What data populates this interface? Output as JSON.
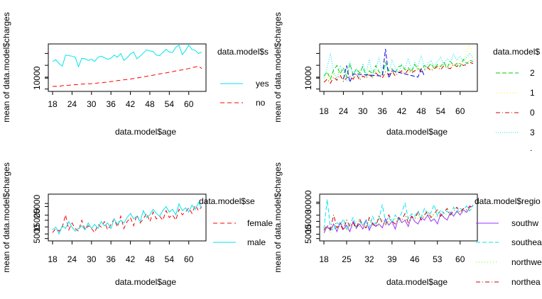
{
  "chart_data": [
    {
      "type": "line",
      "title": "",
      "xlabel": "data.model$age",
      "ylabel": "mean of  data.model$charges",
      "legend_title": "data.model$s",
      "x_ticks": [
        "18",
        "24",
        "30",
        "36",
        "42",
        "48",
        "54",
        "60"
      ],
      "y_ticks": [
        "10000"
      ],
      "xlim": [
        18,
        64
      ],
      "ylim": [
        0,
        40000
      ],
      "grid": false,
      "legend_position": "right",
      "x": [
        18,
        19,
        20,
        21,
        22,
        23,
        24,
        25,
        26,
        27,
        28,
        29,
        30,
        31,
        32,
        33,
        34,
        35,
        36,
        37,
        38,
        39,
        40,
        41,
        42,
        43,
        44,
        45,
        46,
        47,
        48,
        49,
        50,
        51,
        52,
        53,
        54,
        55,
        56,
        57,
        58,
        59,
        60,
        61,
        62,
        63,
        64
      ],
      "series": [
        {
          "name": "yes",
          "color": "#00e5ee",
          "dash": "solid",
          "values": [
            26000,
            27500,
            24000,
            21500,
            32000,
            31500,
            31000,
            30000,
            21000,
            29000,
            28500,
            27000,
            28000,
            26000,
            30000,
            31000,
            29500,
            28000,
            29000,
            32000,
            30000,
            33500,
            27000,
            29500,
            33000,
            35000,
            28500,
            31000,
            34000,
            37000,
            36000,
            35500,
            32000,
            31500,
            34500,
            37500,
            35000,
            34500,
            39500,
            41500,
            32500,
            36500,
            41500,
            37500,
            36500,
            33500,
            35000
          ]
        },
        {
          "name": "no",
          "color": "#ff0000",
          "dash": "6,4",
          "values": [
            2000,
            2200,
            2100,
            2800,
            3000,
            3100,
            3500,
            3700,
            3800,
            4300,
            4500,
            4600,
            4700,
            4800,
            5400,
            5500,
            5900,
            6000,
            6800,
            7000,
            7600,
            7900,
            8400,
            8700,
            9100,
            9600,
            10200,
            10600,
            11200,
            11800,
            12300,
            12800,
            13300,
            14000,
            14500,
            15000,
            15600,
            16200,
            16900,
            17400,
            17900,
            18600,
            19200,
            20000,
            20700,
            21400,
            19200
          ]
        }
      ]
    },
    {
      "type": "line",
      "title": "",
      "xlabel": "data.model$age",
      "ylabel": "mean of  data.model$charges",
      "legend_title": "data.model$",
      "x_ticks": [
        "18",
        "24",
        "30",
        "36",
        "42",
        "48",
        "54",
        "60"
      ],
      "y_ticks": [
        "10000"
      ],
      "xlim": [
        18,
        64
      ],
      "ylim": [
        0,
        40000
      ],
      "grid": false,
      "legend_position": "right",
      "x": [
        18,
        19,
        20,
        21,
        22,
        23,
        24,
        25,
        26,
        27,
        28,
        29,
        30,
        31,
        32,
        33,
        34,
        35,
        36,
        37,
        38,
        39,
        40,
        41,
        42,
        43,
        44,
        45,
        46,
        47,
        48,
        49,
        50,
        51,
        52,
        53,
        54,
        55,
        56,
        57,
        58,
        59,
        60,
        61,
        62,
        63,
        64
      ],
      "series": [
        {
          "name": "2",
          "color": "#00cd00",
          "dash": "6,3",
          "values": [
            12000,
            16000,
            9000,
            18000,
            22000,
            14000,
            20000,
            11000,
            24000,
            13000,
            19000,
            15000,
            21000,
            12000,
            17000,
            14000,
            22000,
            16000,
            13000,
            25000,
            17000,
            19000,
            15000,
            21000,
            22000,
            18000,
            20000,
            16000,
            23000,
            19000,
            18000,
            22000,
            20000,
            24000,
            19000,
            23000,
            21000,
            25000,
            20000,
            26000,
            22000,
            24000,
            21000,
            28000,
            24000,
            27000,
            26000
          ]
        },
        {
          "name": "1",
          "color": "#ffee00",
          "dash": "1,3",
          "values": [
            8000,
            13000,
            6000,
            15000,
            10000,
            18000,
            7000,
            14000,
            12000,
            16000,
            9000,
            17000,
            11000,
            13000,
            15000,
            10000,
            18000,
            12000,
            16000,
            11000,
            19000,
            14000,
            13000,
            17000,
            15000,
            20000,
            14000,
            18000,
            16000,
            21000,
            17000,
            19000,
            20000,
            18000,
            22000,
            19000,
            23000,
            21000,
            20000,
            24000,
            22000,
            25000,
            23000,
            26000,
            35000,
            42000,
            30000
          ]
        },
        {
          "name": "0",
          "color": "#cd0000",
          "dash": "6,3,1,3",
          "values": [
            6000,
            9000,
            5000,
            11000,
            8000,
            13000,
            7000,
            10000,
            12000,
            9000,
            14000,
            8000,
            12000,
            10000,
            13000,
            11000,
            15000,
            12000,
            10000,
            16000,
            13000,
            17000,
            12000,
            15000,
            17000,
            14000,
            18000,
            15000,
            17000,
            19000,
            16000,
            18000,
            20000,
            17000,
            19000,
            21000,
            18000,
            22000,
            20000,
            19000,
            23000,
            21000,
            24000,
            22000,
            23000,
            25000,
            24000
          ]
        },
        {
          "name": "3",
          "color": "#00e5ee",
          "dash": "1,2",
          "values": [
            10000,
            20000,
            34000,
            16000,
            9000,
            22000,
            15000,
            8000,
            26000,
            12000,
            19000,
            10000,
            24000,
            14000,
            28000,
            11000,
            18000,
            30000,
            13000,
            22000,
            16000,
            27000,
            20000,
            15000,
            23000,
            19000,
            29000,
            17000,
            25000,
            21000,
            32000,
            18000,
            24000,
            27000,
            21000,
            26000,
            30000,
            23000,
            29000,
            25000,
            33000,
            27000,
            31000,
            26000,
            30000,
            34000,
            28000
          ]
        }
      ],
      "extra_series_strokes": [
        {
          "color": "#0000ee",
          "dash": "6,3",
          "x": [
            24,
            25,
            26,
            27,
            36,
            37,
            38,
            39,
            47,
            48,
            49
          ],
          "values": [
            9000,
            22000,
            6000,
            14000,
            12000,
            38000,
            10000,
            17000,
            11000,
            19000,
            12000
          ]
        }
      ],
      "legend_overflow_mark": "."
    },
    {
      "type": "line",
      "title": "",
      "xlabel": "data.model$age",
      "ylabel": "mean of  data.model$charges",
      "legend_title": "data.model$se",
      "x_ticks": [
        "18",
        "24",
        "30",
        "36",
        "42",
        "48",
        "54",
        "60"
      ],
      "y_ticks": [
        "5000",
        "15000",
        "25000"
      ],
      "xlim": [
        18,
        64
      ],
      "ylim": [
        2000,
        32000
      ],
      "grid": false,
      "legend_position": "right",
      "x": [
        18,
        19,
        20,
        21,
        22,
        23,
        24,
        25,
        26,
        27,
        28,
        29,
        30,
        31,
        32,
        33,
        34,
        35,
        36,
        37,
        38,
        39,
        40,
        41,
        42,
        43,
        44,
        45,
        46,
        47,
        48,
        49,
        50,
        51,
        52,
        53,
        54,
        55,
        56,
        57,
        58,
        59,
        60,
        61,
        62,
        63,
        64
      ],
      "series": [
        {
          "name": "female",
          "color": "#ff0000",
          "dash": "6,4",
          "values": [
            6000,
            9000,
            7000,
            10000,
            19000,
            8000,
            13000,
            9000,
            7000,
            15000,
            8000,
            11000,
            9000,
            6000,
            12000,
            10000,
            14000,
            8000,
            12000,
            16000,
            10000,
            18000,
            9000,
            14000,
            17000,
            11000,
            19000,
            13000,
            16000,
            20000,
            14000,
            21000,
            16000,
            18000,
            15000,
            22000,
            17000,
            19000,
            15000,
            23000,
            19000,
            21000,
            24000,
            20000,
            26000,
            22000,
            25000
          ]
        },
        {
          "name": "male",
          "color": "#00e5ee",
          "dash": "solid",
          "values": [
            8000,
            10000,
            5000,
            11000,
            9000,
            14000,
            10000,
            7000,
            9000,
            11000,
            8000,
            13000,
            9000,
            12000,
            9000,
            14000,
            11000,
            13000,
            9000,
            16000,
            12000,
            15000,
            13000,
            17000,
            20000,
            16000,
            18000,
            14000,
            22000,
            17000,
            19000,
            23000,
            20000,
            18000,
            22000,
            25000,
            21000,
            23000,
            19000,
            27000,
            22000,
            24000,
            21000,
            26000,
            23000,
            28000,
            24000
          ]
        }
      ]
    },
    {
      "type": "line",
      "title": "",
      "xlabel": "data.model$age",
      "ylabel": "mean of  data.model$charges",
      "legend_title": "data.model$regio",
      "x_ticks": [
        "18",
        "25",
        "32",
        "39",
        "46",
        "53",
        "60"
      ],
      "y_ticks": [
        "5000",
        "15000",
        "30000"
      ],
      "xlim": [
        18,
        64
      ],
      "ylim": [
        2000,
        34000
      ],
      "grid": false,
      "legend_position": "right",
      "x": [
        18,
        19,
        20,
        21,
        22,
        23,
        24,
        25,
        26,
        27,
        28,
        29,
        30,
        31,
        32,
        33,
        34,
        35,
        36,
        37,
        38,
        39,
        40,
        41,
        42,
        43,
        44,
        45,
        46,
        47,
        48,
        49,
        50,
        51,
        52,
        53,
        54,
        55,
        56,
        57,
        58,
        59,
        60,
        61,
        62,
        63,
        64
      ],
      "series": [
        {
          "name": "southw",
          "color": "#9b30ff",
          "dash": "solid",
          "values": [
            6000,
            11000,
            8000,
            13000,
            7000,
            14000,
            9000,
            12000,
            7000,
            15000,
            10000,
            13000,
            9000,
            16000,
            8000,
            14000,
            11000,
            13000,
            10000,
            17000,
            12000,
            15000,
            9000,
            18000,
            14000,
            16000,
            11000,
            19000,
            15000,
            13000,
            18000,
            16000,
            20000,
            15000,
            17000,
            13000,
            21000,
            18000,
            16000,
            22000,
            19000,
            23000,
            20000,
            24000,
            22000,
            26000,
            27000
          ]
        },
        {
          "name": "southea",
          "color": "#00e5ee",
          "dash": "6,3",
          "values": [
            9000,
            32000,
            10000,
            8000,
            14000,
            12000,
            17000,
            9000,
            13000,
            18000,
            11000,
            15000,
            12000,
            16000,
            10000,
            19000,
            13000,
            17000,
            28000,
            15000,
            18000,
            14000,
            20000,
            16000,
            22000,
            29000,
            17000,
            21000,
            19000,
            23000,
            18000,
            25000,
            20000,
            22000,
            28000,
            19000,
            24000,
            21000,
            23000,
            20000,
            26000,
            22000,
            25000,
            24000,
            27000,
            23000,
            28000
          ]
        },
        {
          "name": "northwe",
          "color": "#66ff00",
          "dash": "1,3",
          "values": [
            7000,
            10000,
            6000,
            12000,
            9000,
            11000,
            14000,
            8000,
            12000,
            10000,
            15000,
            11000,
            13000,
            9000,
            16000,
            12000,
            14000,
            11000,
            17000,
            13000,
            15000,
            12000,
            18000,
            14000,
            16000,
            15000,
            19000,
            16000,
            18000,
            17000,
            20000,
            18000,
            19000,
            21000,
            17000,
            20000,
            22000,
            19000,
            21000,
            23000,
            20000,
            22000,
            24000,
            21000,
            23000,
            25000,
            24000
          ]
        },
        {
          "name": "northea",
          "color": "#cd0000",
          "dash": "6,3,1,3",
          "values": [
            8000,
            12000,
            9000,
            20000,
            10000,
            13000,
            8000,
            16000,
            11000,
            14000,
            9000,
            17000,
            12000,
            10000,
            18000,
            13000,
            11000,
            19000,
            14000,
            12000,
            20000,
            15000,
            13000,
            18000,
            16000,
            21000,
            14000,
            19000,
            17000,
            22000,
            16000,
            20000,
            23000,
            18000,
            21000,
            24000,
            19000,
            22000,
            25000,
            20000,
            23000,
            26000,
            22000,
            25000,
            24000,
            27000,
            26000
          ]
        }
      ]
    }
  ]
}
